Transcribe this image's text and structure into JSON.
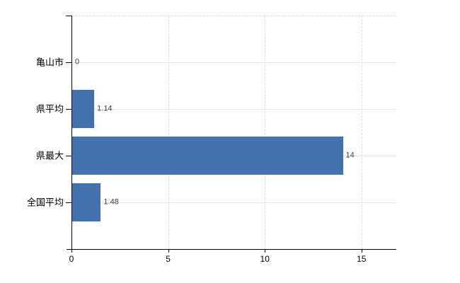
{
  "chart_data": {
    "type": "bar",
    "orientation": "horizontal",
    "title": "",
    "xlabel": "",
    "ylabel": "",
    "categories": [
      "亀山市",
      "県平均",
      "県最大",
      "全国平均"
    ],
    "values": [
      0,
      1.14,
      14,
      1.48
    ],
    "value_labels": [
      "0",
      "1.14",
      "14",
      "1.48"
    ],
    "xlim": [
      0,
      16.8
    ],
    "x_ticks": [
      0,
      5,
      10,
      15
    ],
    "x_tick_labels": [
      "0",
      "5",
      "10",
      "15"
    ],
    "grid": "on",
    "legend": "none",
    "colors": {
      "bar": "#4371ad",
      "h_gridline": "#dfe5df",
      "v_gridline": "#dcdcdc",
      "plot_top_border": "#d9d9d9",
      "axis": "#000000",
      "category_label": "#000000",
      "value_label": "#3d3d3d",
      "tick_label": "#000000",
      "background": "#ffffff"
    }
  }
}
